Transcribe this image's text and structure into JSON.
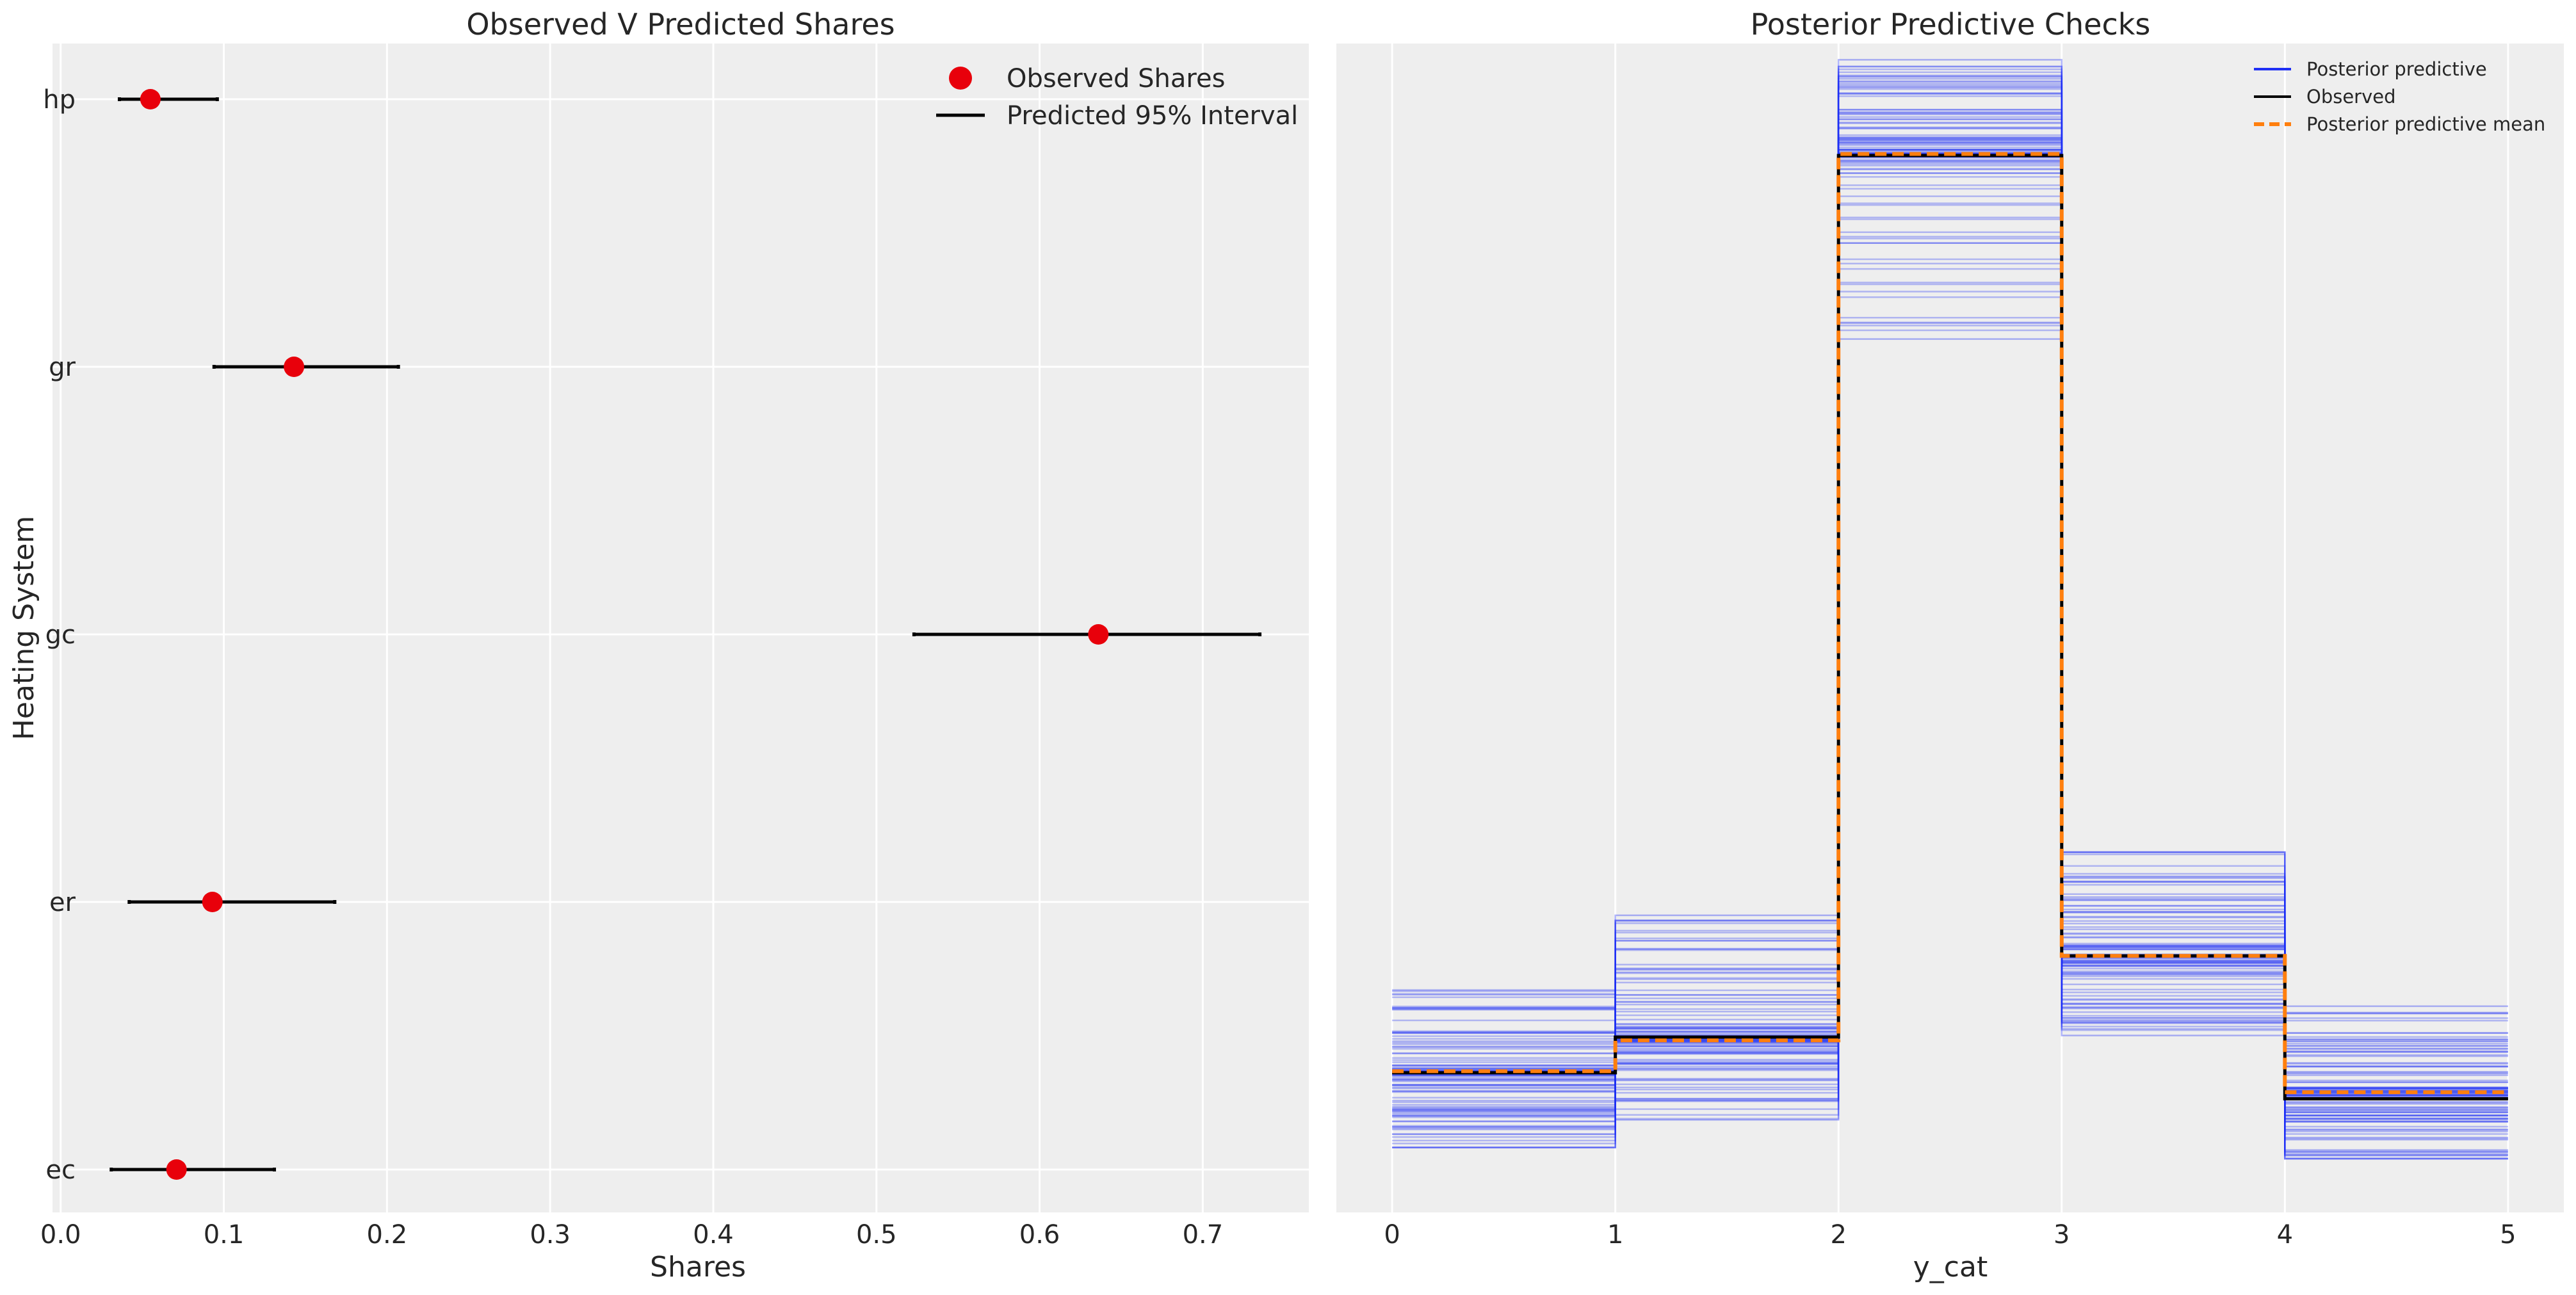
{
  "colors": {
    "panel_bg": "#eeeeee",
    "grid": "#ffffff",
    "observed_marker": "#e8000b",
    "interval": "#000000",
    "posterior_predictive": "#1f2ff5",
    "observed_line": "#000000",
    "posterior_mean": "#ff7f0e"
  },
  "chart_data": [
    {
      "type": "scatter",
      "title": "Observed V Predicted Shares",
      "xlabel": "Shares",
      "ylabel": "Heating System",
      "xlim": [
        -0.005,
        0.765
      ],
      "xticks": [
        0.0,
        0.1,
        0.2,
        0.3,
        0.4,
        0.5,
        0.6,
        0.7
      ],
      "xtick_labels": [
        "0.0",
        "0.1",
        "0.2",
        "0.3",
        "0.4",
        "0.5",
        "0.6",
        "0.7"
      ],
      "categories": [
        "hp",
        "gr",
        "gc",
        "er",
        "ec"
      ],
      "observed": [
        0.055,
        0.143,
        0.636,
        0.093,
        0.071
      ],
      "interval_low": [
        0.036,
        0.094,
        0.523,
        0.042,
        0.031
      ],
      "interval_high": [
        0.096,
        0.207,
        0.735,
        0.168,
        0.131
      ],
      "grid": true,
      "legend_position": "top-right",
      "legend": [
        "Observed Shares",
        "Predicted 95% Interval"
      ]
    },
    {
      "type": "line",
      "title": "Posterior Predictive Checks",
      "xlabel": "y_cat",
      "ylabel": "",
      "xlim": [
        -0.25,
        5.25
      ],
      "ylim": [
        -0.015,
        0.705
      ],
      "xticks": [
        0,
        1,
        2,
        3,
        4,
        5
      ],
      "xtick_labels": [
        "0",
        "1",
        "2",
        "3",
        "4",
        "5"
      ],
      "bin_edges": [
        0,
        1,
        2,
        3,
        4,
        5
      ],
      "observed": [
        0.071,
        0.093,
        0.636,
        0.143,
        0.055
      ],
      "posterior_mean": [
        0.072,
        0.091,
        0.637,
        0.143,
        0.059
      ],
      "posterior_predictive_range_low": [
        0.025,
        0.042,
        0.523,
        0.094,
        0.018
      ],
      "posterior_predictive_range_high": [
        0.122,
        0.168,
        0.695,
        0.207,
        0.112
      ],
      "grid": true,
      "yticks_visible": false,
      "legend_position": "top-right",
      "legend": [
        "Posterior predictive",
        "Observed",
        "Posterior predictive mean"
      ]
    }
  ]
}
